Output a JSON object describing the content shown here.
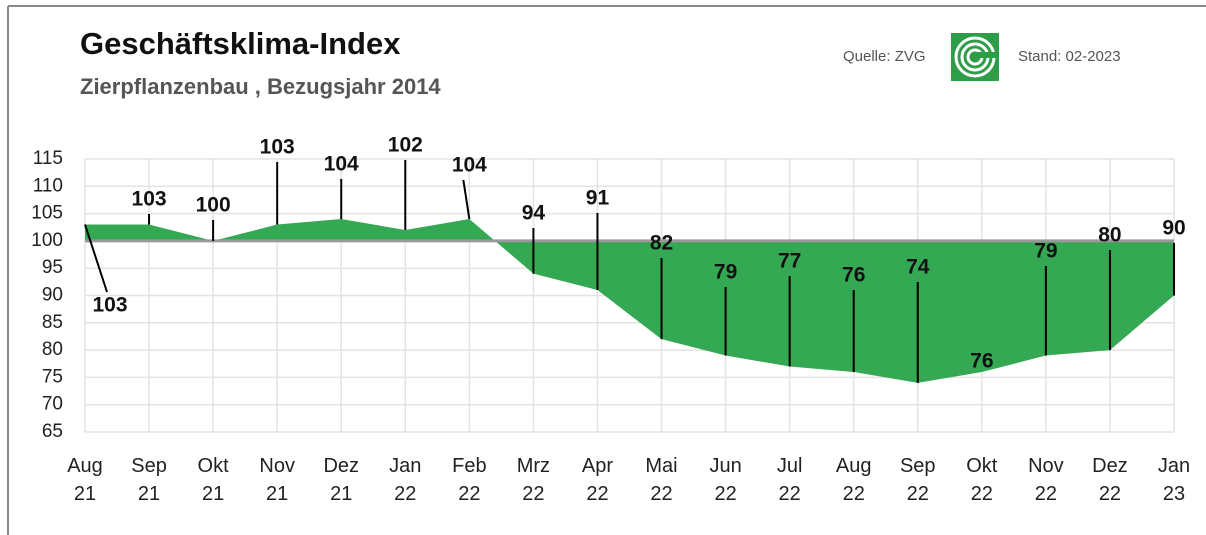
{
  "chart_data": {
    "type": "area",
    "title": "Geschäftsklima-Index",
    "subtitle": "Zierpflanzenbau , Bezugsjahr 2014",
    "source": "Quelle: ZVG",
    "date": "Stand: 02-2023",
    "categories": [
      "Aug 21",
      "Sep 21",
      "Okt 21",
      "Nov 21",
      "Dez 21",
      "Jan 22",
      "Feb 22",
      "Mrz 22",
      "Apr 22",
      "Mai 22",
      "Jun 22",
      "Jul 22",
      "Aug 22",
      "Sep 22",
      "Okt 22",
      "Nov 22",
      "Dez 22",
      "Jan 23"
    ],
    "values": [
      103,
      103,
      100,
      103,
      104,
      102,
      104,
      94,
      91,
      82,
      79,
      77,
      76,
      74,
      76,
      79,
      80,
      90
    ],
    "color": "#35a853",
    "baseline": 100,
    "ylim": [
      65,
      115
    ],
    "yticks": [
      65,
      70,
      75,
      80,
      85,
      90,
      95,
      100,
      105,
      110,
      115
    ],
    "grid": true
  }
}
